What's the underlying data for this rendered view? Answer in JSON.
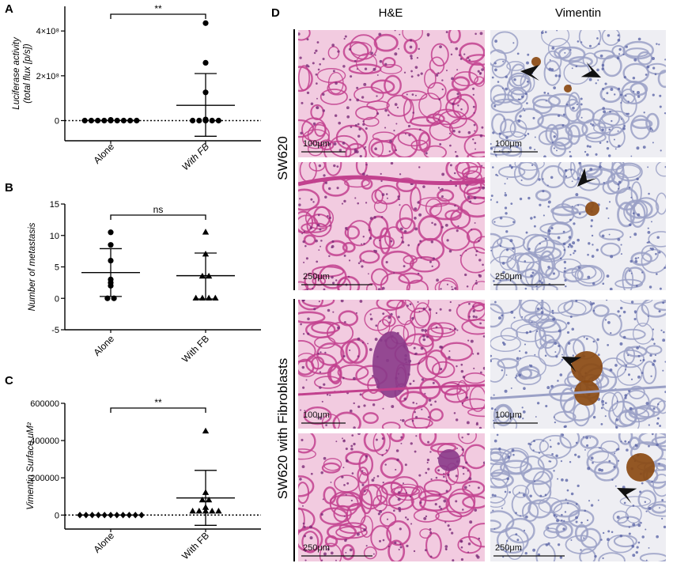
{
  "panels": {
    "A": "A",
    "B": "B",
    "C": "C",
    "D": "D"
  },
  "chart_data": [
    {
      "type": "scatter",
      "panel": "A",
      "ylabel_line1": "Luciferase activity",
      "ylabel_line2": "(total flux [p/s])",
      "ytick_labels": [
        "0",
        "2×10⁸",
        "4×10⁸"
      ],
      "ytick_values": [
        0,
        200000000,
        400000000
      ],
      "ylim": [
        -90000000,
        510000000
      ],
      "categories": [
        "Alone",
        "With FB"
      ],
      "category_italic": [
        false,
        true
      ],
      "series": [
        {
          "marker": "circle",
          "values": [
            3000000,
            0,
            0,
            0,
            0,
            0,
            0,
            0,
            0,
            0
          ]
        },
        {
          "marker": "circle",
          "values": [
            435000000,
            258000000,
            126000000,
            5000000,
            3000000,
            2000000,
            1000000,
            0,
            0,
            0,
            0,
            0
          ]
        }
      ],
      "means": [
        500000,
        68000000
      ],
      "sd_upper": [
        1500000,
        210000000
      ],
      "sd_lower": [
        -500000,
        -70000000
      ],
      "significance": "**",
      "zero_line_dotted": true
    },
    {
      "type": "scatter",
      "panel": "B",
      "ylabel": "Number of metastasis",
      "ytick_labels": [
        "-5",
        "0",
        "5",
        "10",
        "15"
      ],
      "ytick_values": [
        -5,
        0,
        5,
        10,
        15
      ],
      "ylim": [
        -5,
        15
      ],
      "categories": [
        "Alone",
        "With FB"
      ],
      "category_italic": [
        false,
        false
      ],
      "series": [
        {
          "marker": "circle",
          "values": [
            10.5,
            8.5,
            6,
            3,
            2.5,
            2,
            0,
            0
          ]
        },
        {
          "marker": "triangle",
          "values": [
            10.5,
            7,
            3.5,
            3.5,
            0,
            0,
            0,
            0
          ]
        }
      ],
      "means": [
        4.1,
        3.6
      ],
      "sd_upper": [
        7.9,
        7.2
      ],
      "sd_lower": [
        0.3,
        -0.1
      ],
      "significance": "ns",
      "zero_line_dotted": false
    },
    {
      "type": "scatter",
      "panel": "C",
      "ylabel": "Vimentin Surface uM²",
      "ytick_labels": [
        "0",
        "200000",
        "400000",
        "600000"
      ],
      "ytick_values": [
        0,
        200000,
        400000,
        600000
      ],
      "ylim": [
        -75000,
        600000
      ],
      "categories": [
        "Alone",
        "With FB"
      ],
      "category_italic": [
        false,
        false
      ],
      "series": [
        {
          "marker": "diamond",
          "values": [
            0,
            0,
            0,
            0,
            0,
            0,
            0,
            0,
            0,
            0,
            0
          ]
        },
        {
          "marker": "triangle",
          "values": [
            450000,
            120000,
            80000,
            80000,
            40000,
            20000,
            20000,
            20000,
            20000,
            20000
          ]
        }
      ],
      "means": [
        0,
        92000
      ],
      "sd_upper": [
        0,
        240000
      ],
      "sd_lower": [
        0,
        -55000
      ],
      "significance": "**",
      "zero_line_dotted": true
    }
  ],
  "micrographs": {
    "col_he": "H&E",
    "col_vim": "Vimentin",
    "row_sw620": "SW620",
    "row_sw620_fb": "SW620 with Fibroblasts",
    "tiles": [
      {
        "stain": "he",
        "scale": "100μm"
      },
      {
        "stain": "vim",
        "scale": "100μm"
      },
      {
        "stain": "he",
        "scale": "250μm"
      },
      {
        "stain": "vim",
        "scale": "250μm"
      },
      {
        "stain": "he",
        "scale": "100μm"
      },
      {
        "stain": "vim",
        "scale": "100μm"
      },
      {
        "stain": "he",
        "scale": "250μm"
      },
      {
        "stain": "vim",
        "scale": "250μm"
      }
    ],
    "colors": {
      "he_bg": "#f2cbe0",
      "he_tissue": "#c2418e",
      "he_nuclei": "#7a2a78",
      "vim_bg": "#eeeef3",
      "vim_tissue": "#9aa0c6",
      "vim_stain": "#8b4a12"
    }
  }
}
